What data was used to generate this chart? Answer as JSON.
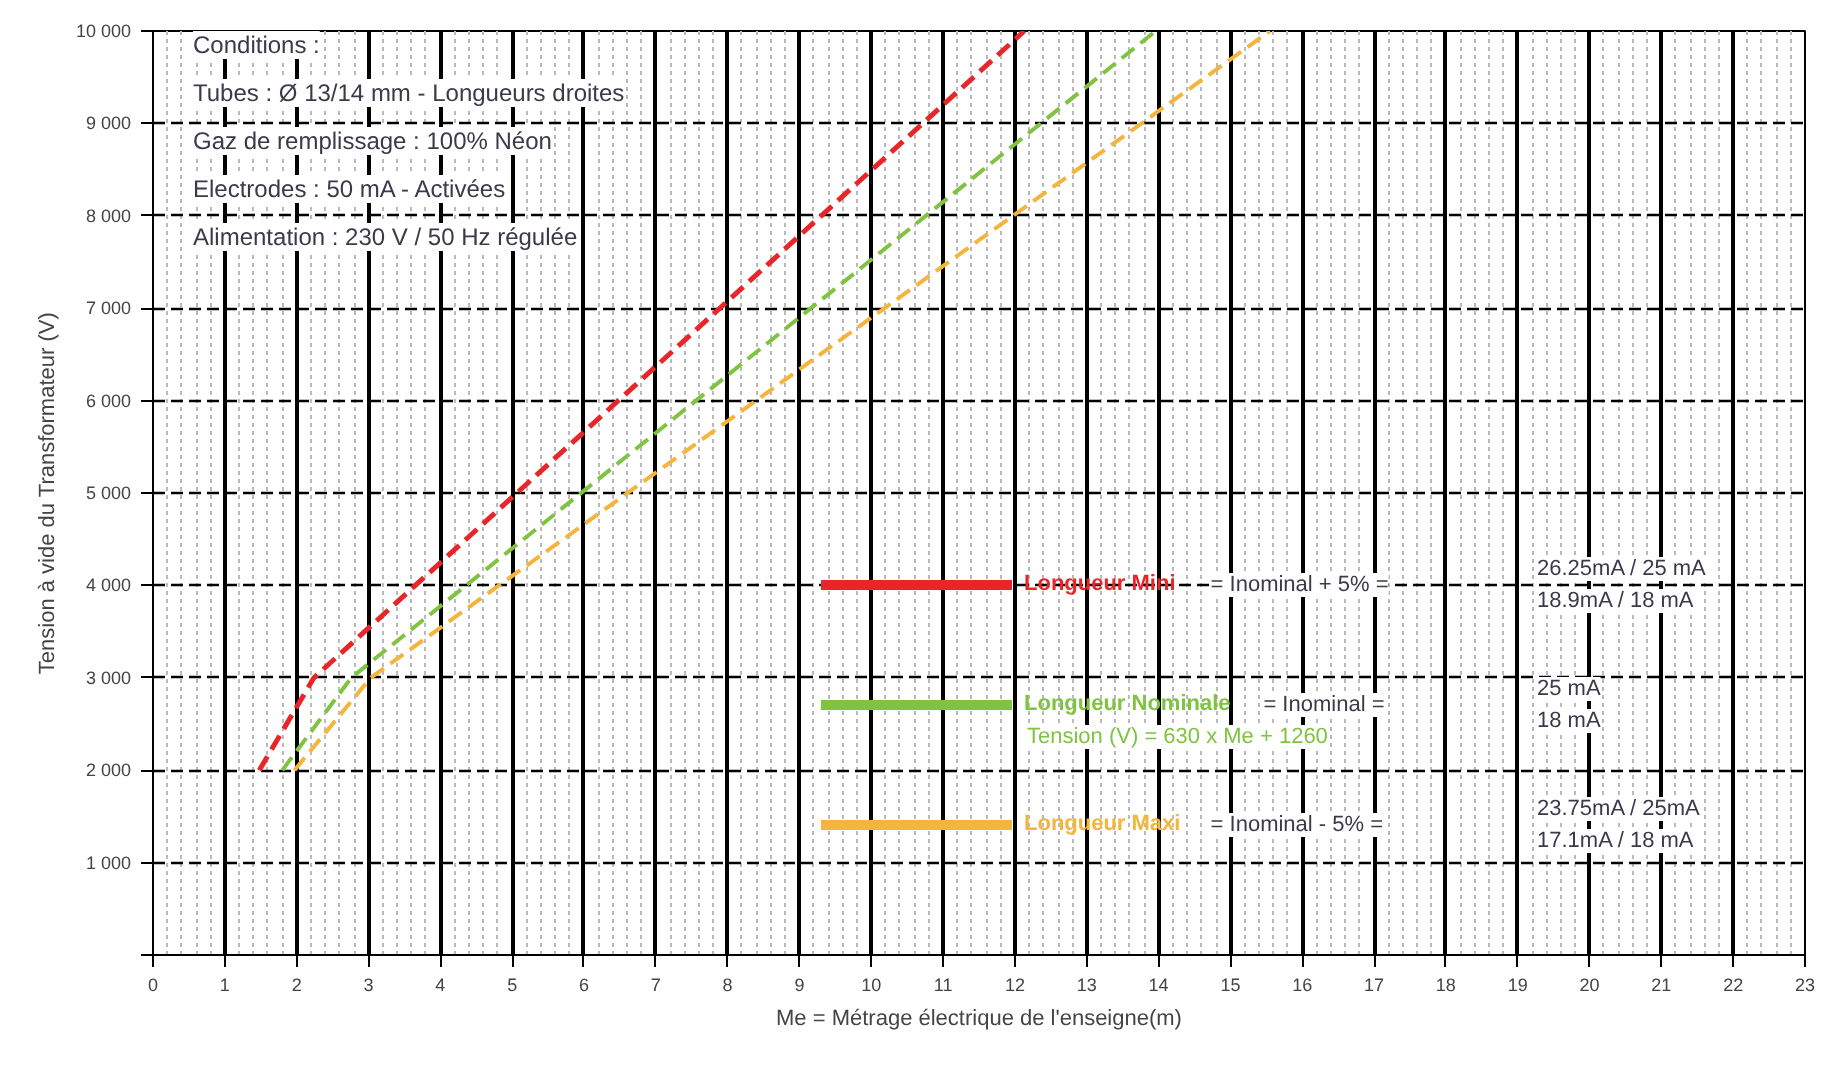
{
  "chart_data": {
    "type": "line",
    "xlabel": "Me = Métrage électrique de l'enseigne(m)",
    "ylabel": "Tension à vide du Transformateur (V)",
    "xlim": [
      0,
      23
    ],
    "ylim": [
      0,
      10000
    ],
    "xticks": [
      0,
      1,
      2,
      3,
      4,
      5,
      6,
      7,
      8,
      9,
      10,
      11,
      12,
      13,
      14,
      15,
      16,
      17,
      18,
      19,
      20,
      21,
      22,
      23
    ],
    "yticks": [
      {
        "value": 0,
        "label": null
      },
      {
        "value": 1000,
        "label": "1 000"
      },
      {
        "value": 2000,
        "label": "2 000"
      },
      {
        "value": 3000,
        "label": "3 000"
      },
      {
        "value": 4000,
        "label": "4 000"
      },
      {
        "value": 5000,
        "label": "5 000"
      },
      {
        "value": 6000,
        "label": "6 000"
      },
      {
        "value": 7000,
        "label": "7 000"
      },
      {
        "value": 8000,
        "label": "8 000"
      },
      {
        "value": 9000,
        "label": "9 000"
      },
      {
        "value": 10000,
        "label": "10 000"
      }
    ],
    "grid": true,
    "line_style": "dashed",
    "marker": "none",
    "legend": "right",
    "series": [
      {
        "name": "Longueur Mini",
        "color": "#e8262a",
        "x": [
          1.48,
          2.24,
          12.13
        ],
        "values": [
          2000,
          3000,
          10000
        ]
      },
      {
        "name": "Longueur Nominale",
        "color": "#7fc341",
        "x": [
          1.8,
          2.76,
          13.96
        ],
        "values": [
          2000,
          3000,
          10000
        ]
      },
      {
        "name": "Longueur Maxi",
        "color": "#f5b43c",
        "x": [
          1.97,
          3.03,
          15.55
        ],
        "values": [
          2000,
          3000,
          10000
        ]
      }
    ],
    "annotations": [
      "Conditions :",
      "Tubes : Ø 13/14 mm - Longueurs droites",
      "Gaz de remplissage : 100% Néon",
      "Electrodes : 50 mA - Activées",
      "Alimentation : 230 V / 50 Hz régulée",
      "= Inominal + 5% =",
      "26.25mA / 25 mA",
      "18.9mA / 18 mA",
      "= Inominal =",
      "25 mA",
      "18 mA",
      "= Inominal - 5% =",
      "23.75mA / 25mA",
      "17.1mA / 18 mA",
      "Tension (V) = 630 x Me + 1260"
    ]
  }
}
